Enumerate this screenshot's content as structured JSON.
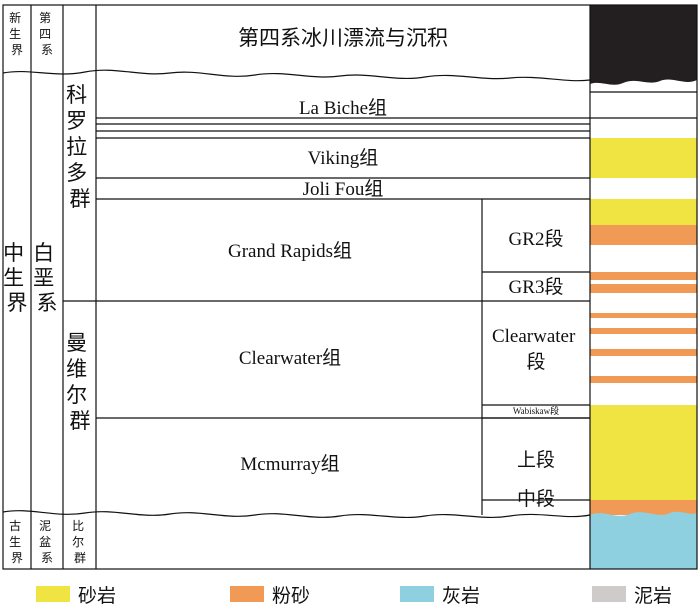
{
  "header": {
    "era_cenozoic": "新生界",
    "system_quaternary": "第四系",
    "quaternary_unit": "第四系冰川漂流与沉积"
  },
  "columns": {
    "era_mesozoic": "中生界",
    "system_cretaceous": "白垩系",
    "group_colorado": "科罗拉多群",
    "group_mannville": "曼维尔群"
  },
  "formations": {
    "la_biche": "La Biche组",
    "viking": "Viking组",
    "joli_fou": "Joli Fou组",
    "grand_rapids": "Grand Rapids组",
    "clearwater": "Clearwater组",
    "mcmurray": "Mcmurray组"
  },
  "members": {
    "gr2": "GR2段",
    "gr3": "GR3段",
    "clearwater_line1": "Clearwater",
    "clearwater_line2": "段",
    "wabiskaw": "Wabiskaw段",
    "upper": "上段",
    "middle": "中段"
  },
  "footer": {
    "era_paleozoic": "古生界",
    "system_devonian": "泥盆系",
    "group_beaverhill": "比尔群"
  },
  "legend": [
    {
      "label": "砂岩",
      "color": "#f0e442"
    },
    {
      "label": "粉砂",
      "color": "#f09a56"
    },
    {
      "label": "灰岩",
      "color": "#8ecfe0"
    },
    {
      "label": "泥岩",
      "color": "#cfcbcb"
    }
  ],
  "colors": {
    "sand": "#f0e442",
    "silt": "#f09a56",
    "limestone": "#8ecfe0",
    "mud_black": "#231f20"
  }
}
